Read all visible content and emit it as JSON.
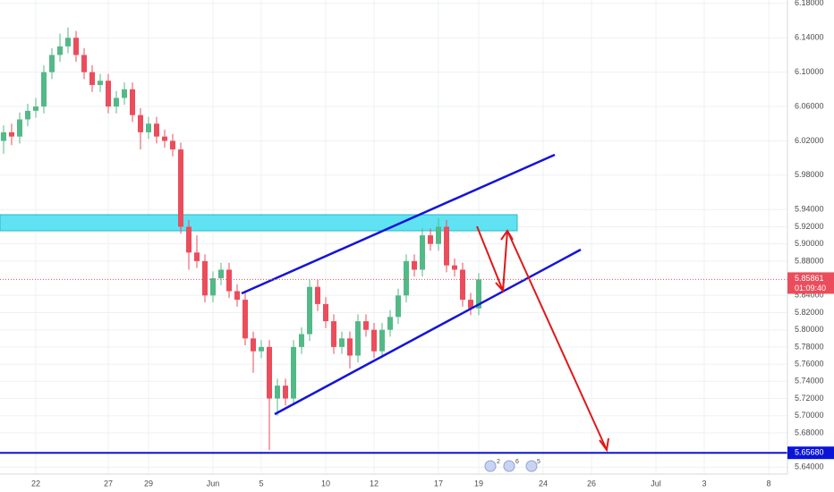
{
  "chart_data": {
    "type": "candlestick",
    "categories": [
      null,
      null,
      null,
      null,
      "22",
      null,
      null,
      null,
      null,
      null,
      null,
      null,
      null,
      "27",
      null,
      null,
      null,
      null,
      "29",
      null,
      null,
      null,
      null,
      null,
      null,
      null,
      "Jun",
      null,
      null,
      null,
      null,
      null,
      "5",
      null,
      null,
      null,
      null,
      null,
      null,
      null,
      "10",
      null,
      null,
      null,
      null,
      null,
      "12",
      null,
      null,
      null,
      null,
      null,
      null,
      null,
      "17",
      null,
      null,
      null,
      null,
      "19",
      null,
      null,
      null,
      null,
      null,
      null,
      null,
      "24",
      null,
      null,
      null,
      null,
      null,
      "26",
      null,
      null,
      null,
      null,
      null,
      null,
      null,
      "Jul",
      null,
      null,
      null,
      null,
      null,
      "3",
      null,
      null,
      null,
      null,
      null,
      null,
      null,
      "8"
    ],
    "open": [
      6.02,
      6.03,
      6.025,
      6.045,
      6.055,
      6.06,
      6.1,
      6.12,
      6.13,
      6.14,
      6.12,
      6.1,
      6.085,
      6.09,
      6.06,
      6.07,
      6.08,
      6.05,
      6.03,
      6.04,
      6.025,
      6.02,
      6.01,
      5.92,
      5.89,
      5.88,
      5.84,
      5.86,
      5.87,
      5.845,
      5.835,
      5.79,
      5.775,
      5.78,
      5.72,
      5.735,
      5.72,
      5.78,
      5.795,
      5.85,
      5.83,
      5.81,
      5.78,
      5.79,
      5.77,
      5.81,
      5.8,
      5.775,
      5.8,
      5.815,
      5.84,
      5.88,
      5.87,
      5.91,
      5.9,
      5.92,
      5.875,
      5.87,
      5.835,
      5.825,
      null,
      null,
      null,
      null,
      null,
      null,
      null,
      null,
      null,
      null,
      null,
      null,
      null,
      null,
      null,
      null,
      null,
      null,
      null,
      null,
      null,
      null,
      null,
      null,
      null,
      null,
      null,
      null,
      null,
      null,
      null,
      null,
      null,
      null,
      null,
      null
    ],
    "high": [
      6.038,
      6.04,
      6.053,
      6.063,
      6.07,
      6.108,
      6.128,
      6.145,
      6.152,
      6.148,
      6.128,
      6.108,
      6.098,
      6.098,
      6.078,
      6.088,
      6.088,
      6.058,
      6.048,
      6.048,
      6.033,
      6.028,
      6.018,
      5.928,
      5.91,
      5.888,
      5.868,
      5.878,
      5.878,
      5.853,
      5.843,
      5.798,
      5.788,
      5.788,
      5.743,
      5.743,
      5.788,
      5.803,
      5.858,
      5.858,
      5.838,
      5.818,
      5.798,
      5.798,
      5.818,
      5.818,
      5.808,
      5.808,
      5.823,
      5.848,
      5.888,
      5.888,
      5.918,
      5.918,
      5.93,
      5.928,
      5.883,
      5.878,
      5.843,
      5.866,
      null,
      null,
      null,
      null,
      null,
      null,
      null,
      null,
      null,
      null,
      null,
      null,
      null,
      null,
      null,
      null,
      null,
      null,
      null,
      null,
      null,
      null,
      null,
      null,
      null,
      null,
      null,
      null,
      null,
      null,
      null,
      null,
      null,
      null,
      null,
      null
    ],
    "low": [
      6.005,
      6.015,
      6.017,
      6.037,
      6.047,
      6.052,
      6.092,
      6.112,
      6.122,
      6.112,
      6.092,
      6.077,
      6.077,
      6.052,
      6.052,
      6.062,
      6.042,
      6.01,
      6.022,
      6.017,
      6.012,
      6.002,
      5.912,
      5.87,
      5.872,
      5.832,
      5.832,
      5.852,
      5.837,
      5.827,
      5.782,
      5.75,
      5.767,
      5.66,
      5.7,
      5.712,
      5.712,
      5.772,
      5.787,
      5.822,
      5.802,
      5.772,
      5.772,
      5.755,
      5.762,
      5.792,
      5.767,
      5.767,
      5.792,
      5.807,
      5.832,
      5.862,
      5.862,
      5.892,
      5.892,
      5.867,
      5.862,
      5.827,
      5.817,
      5.817,
      null,
      null,
      null,
      null,
      null,
      null,
      null,
      null,
      null,
      null,
      null,
      null,
      null,
      null,
      null,
      null,
      null,
      null,
      null,
      null,
      null,
      null,
      null,
      null,
      null,
      null,
      null,
      null,
      null,
      null,
      null,
      null,
      null,
      null,
      null,
      null
    ],
    "close": [
      6.03,
      6.025,
      6.045,
      6.055,
      6.06,
      6.1,
      6.12,
      6.13,
      6.14,
      6.12,
      6.1,
      6.085,
      6.09,
      6.06,
      6.07,
      6.08,
      6.05,
      6.03,
      6.04,
      6.025,
      6.02,
      6.01,
      5.92,
      5.89,
      5.88,
      5.84,
      5.86,
      5.87,
      5.845,
      5.835,
      5.79,
      5.775,
      5.78,
      5.72,
      5.735,
      5.72,
      5.78,
      5.795,
      5.85,
      5.83,
      5.81,
      5.78,
      5.79,
      5.77,
      5.81,
      5.8,
      5.775,
      5.8,
      5.815,
      5.84,
      5.88,
      5.87,
      5.91,
      5.9,
      5.92,
      5.875,
      5.87,
      5.835,
      5.825,
      5.8586,
      null,
      null,
      null,
      null,
      null,
      null,
      null,
      null,
      null,
      null,
      null,
      null,
      null,
      null,
      null,
      null,
      null,
      null,
      null,
      null,
      null,
      null,
      null,
      null,
      null,
      null,
      null,
      null,
      null,
      null,
      null,
      null,
      null,
      null,
      null,
      null
    ],
    "up_color": "#53b987",
    "down_color": "#eb4d5c",
    "ylim": [
      5.632,
      6.184
    ],
    "yticks": [
      {
        "value": 6.18,
        "label": "6.18000"
      },
      {
        "value": 6.14,
        "label": "6.14000"
      },
      {
        "value": 6.1,
        "label": "6.10000"
      },
      {
        "value": 6.06,
        "label": "6.06000"
      },
      {
        "value": 6.02,
        "label": "6.02000"
      },
      {
        "value": 5.98,
        "label": "5.98000"
      },
      {
        "value": 5.94,
        "label": "5.94000"
      },
      {
        "value": 5.92,
        "label": "5.92000"
      },
      {
        "value": 5.9,
        "label": "5.90000"
      },
      {
        "value": 5.88,
        "label": "5.88000"
      },
      {
        "value": 5.84,
        "label": "5.84000"
      },
      {
        "value": 5.82,
        "label": "5.82000"
      },
      {
        "value": 5.8,
        "label": "5.80000"
      },
      {
        "value": 5.78,
        "label": "5.78000"
      },
      {
        "value": 5.76,
        "label": "5.76000"
      },
      {
        "value": 5.74,
        "label": "5.74000"
      },
      {
        "value": 5.72,
        "label": "5.72000"
      },
      {
        "value": 5.7,
        "label": "5.70000"
      },
      {
        "value": 5.68,
        "label": "5.68000"
      },
      {
        "value": 5.64,
        "label": "5.64000"
      }
    ],
    "grid": true,
    "last_price": {
      "value": 5.85861,
      "label": "5.85861",
      "color": "#eb4d5c"
    },
    "countdown": "01:09:40",
    "support_line": {
      "value": 5.6568,
      "label": "5.65680",
      "color": "#0a14d8"
    },
    "events": [
      "2",
      "6",
      "5"
    ]
  }
}
